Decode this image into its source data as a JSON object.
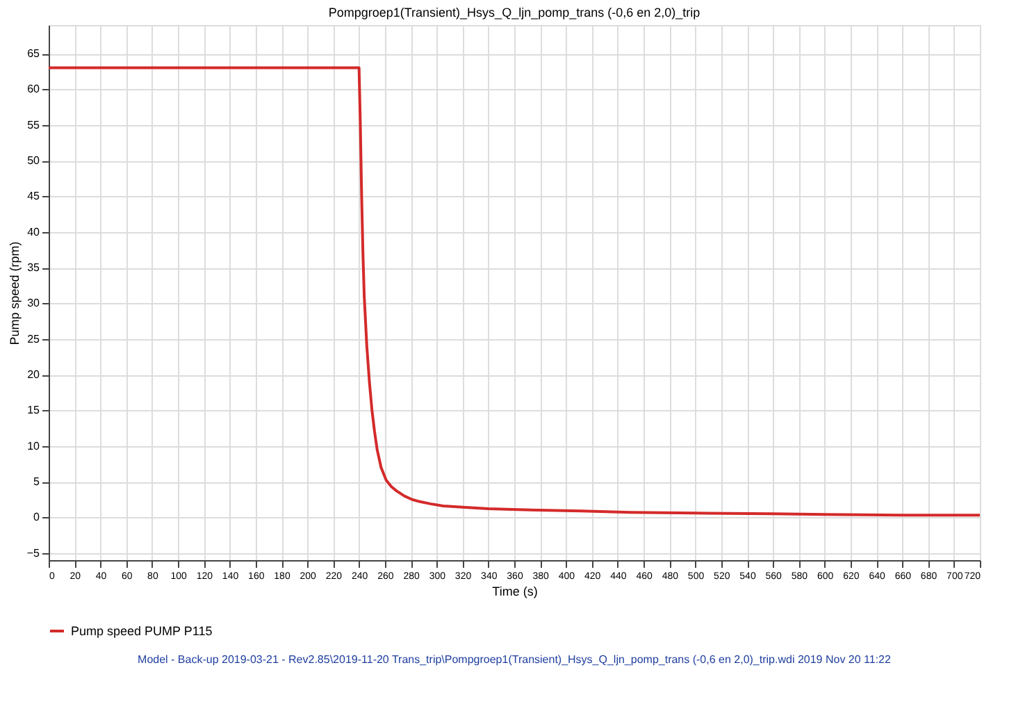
{
  "chart_data": {
    "type": "line",
    "title": "Pompgroep1(Transient)_Hsys_Q_ljn_pomp_trans (-0,6 en 2,0)_trip",
    "xlabel": "Time (s)",
    "ylabel": "Pump speed (rpm)",
    "x": [
      0,
      240,
      241,
      242,
      243,
      244,
      246,
      248,
      250,
      252,
      254,
      257,
      261,
      265,
      269,
      275,
      281,
      287,
      295,
      305,
      322,
      340,
      358,
      385,
      412,
      450,
      500,
      560,
      600,
      660,
      720
    ],
    "series": [
      {
        "name": "Pump speed PUMP P115",
        "color": "#d42a2a",
        "values": [
          63,
          63,
          55,
          45,
          37,
          31,
          24,
          19,
          15,
          12,
          9.5,
          7,
          5.2,
          4.3,
          3.7,
          3,
          2.5,
          2.2,
          1.9,
          1.6,
          1.4,
          1.2,
          1.1,
          1,
          0.9,
          0.7,
          0.6,
          0.5,
          0.4,
          0.3,
          0.3
        ]
      }
    ],
    "xlim": [
      0,
      720
    ],
    "xticks": [
      0,
      20,
      40,
      60,
      80,
      100,
      120,
      140,
      160,
      180,
      200,
      220,
      240,
      260,
      280,
      300,
      320,
      340,
      360,
      380,
      400,
      420,
      440,
      460,
      480,
      500,
      520,
      540,
      560,
      580,
      600,
      620,
      640,
      660,
      680,
      700,
      720
    ],
    "ylim": [
      -6,
      69
    ],
    "yticks": [
      -5,
      0,
      5,
      10,
      15,
      20,
      25,
      30,
      35,
      40,
      45,
      50,
      55,
      60,
      65
    ],
    "grid": true,
    "legend": "bottom",
    "marker": "none",
    "line_style": "solid",
    "annotations": [
      "Model - Back-up 2019-03-21 - Rev2.85\\2019-11-20 Trans_trip\\Pompgroep1(Transient)_Hsys_Q_ljn_pomp_trans (-0,6 en 2,0)_trip.wdi 2019 Nov 20 11:22"
    ]
  }
}
